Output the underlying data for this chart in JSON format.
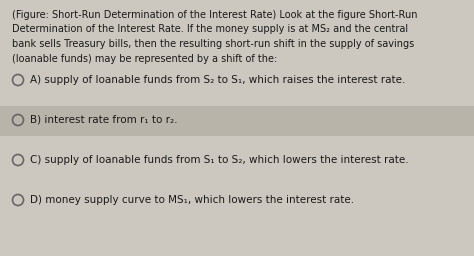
{
  "background_color": "#ccc8bf",
  "highlight_color": "#b8b4aa",
  "text_color": "#1a1a1a",
  "title_lines": [
    "(Figure: Short-Run Determination of the Interest Rate) Look at the figure Short-Run",
    "Determination of the Interest Rate. If the money supply is at MS₂ and the central",
    "bank sells Treasury bills, then the resulting short-run shift in the supply of savings",
    "(loanable funds) may be represented by a shift of the:"
  ],
  "options": [
    {
      "label": "A)",
      "text": "supply of loanable funds from S₂ to S₁, which raises the interest rate.",
      "highlight": false
    },
    {
      "label": "B)",
      "text": "interest rate from r₁ to r₂.",
      "highlight": true
    },
    {
      "label": "C)",
      "text": "supply of loanable funds from S₁ to S₂, which lowers the interest rate.",
      "highlight": false
    },
    {
      "label": "D)",
      "text": "money supply curve to MS₁, which lowers the interest rate.",
      "highlight": false
    }
  ],
  "font_size_title": 7.0,
  "font_size_option": 7.5,
  "figsize": [
    4.74,
    2.56
  ],
  "dpi": 100
}
